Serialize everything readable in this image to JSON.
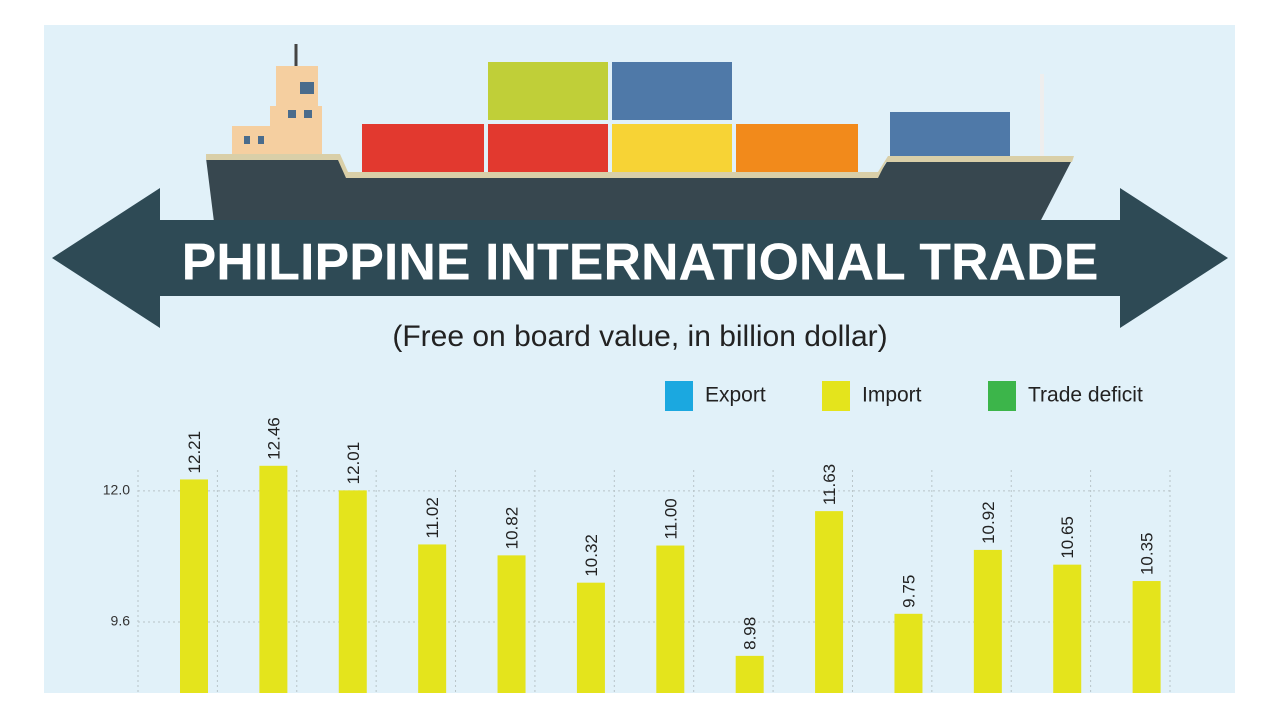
{
  "chart_data": {
    "type": "bar",
    "title": "PHILIPPINE INTERNATIONAL TRADE",
    "subtitle": "(Free on board value, in billion dollar)",
    "categories": [
      null,
      null,
      null,
      null,
      null,
      null,
      null,
      null,
      null,
      null,
      null,
      null,
      null
    ],
    "series": [
      {
        "name": "Export",
        "color": "#1ba8e0",
        "values": [
          null,
          null,
          null,
          null,
          null,
          null,
          null,
          null,
          null,
          null,
          null,
          null,
          null
        ]
      },
      {
        "name": "Import",
        "color": "#e4e41c",
        "values": [
          12.21,
          12.46,
          12.01,
          11.02,
          10.82,
          10.32,
          11.0,
          8.98,
          11.63,
          9.75,
          10.92,
          10.65,
          10.35
        ],
        "value_labels": [
          "12.21",
          "12.46",
          "12.01",
          "11.02",
          "10.82",
          "10.32",
          "11.00",
          "8.98",
          "11.63",
          "9.75",
          "10.92",
          "10.65",
          "10.35"
        ]
      },
      {
        "name": "Trade deficit",
        "color": "#3cb54a",
        "values": [
          null,
          null,
          null,
          null,
          null,
          null,
          null,
          null,
          null,
          null,
          null,
          null,
          null
        ]
      }
    ],
    "ylim": [
      8.3,
      13.5
    ],
    "yticks": [
      9.6,
      {
        "value": 12,
        "label": "12.0"
      }
    ],
    "grid": true
  }
}
